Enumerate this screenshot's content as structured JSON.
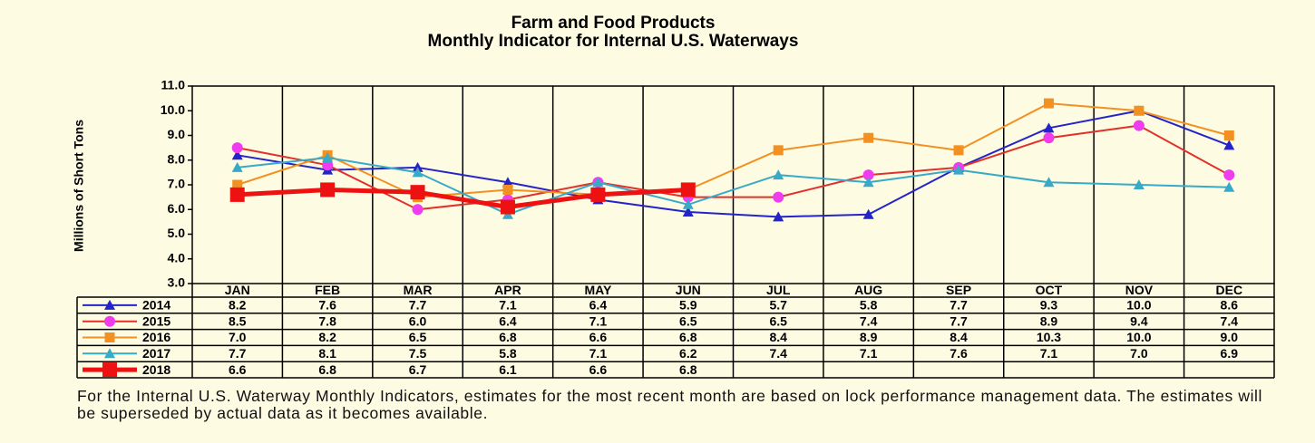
{
  "chart_data": {
    "type": "line",
    "title": "Farm and Food Products",
    "subtitle": "Monthly Indicator for Internal U.S. Waterways",
    "y_label": "Millions of Short Tons",
    "categories": [
      "JAN",
      "FEB",
      "MAR",
      "APR",
      "MAY",
      "JUN",
      "JUL",
      "AUG",
      "SEP",
      "OCT",
      "NOV",
      "DEC"
    ],
    "ylim": [
      3,
      11
    ],
    "yticks": [
      {
        "value": 3,
        "label": "3.0"
      },
      {
        "value": 4,
        "label": "4.0"
      },
      {
        "value": 5,
        "label": "5.0"
      },
      {
        "value": 6,
        "label": "6.0"
      },
      {
        "value": 7,
        "label": "7.0"
      },
      {
        "value": 8,
        "label": "8.0"
      },
      {
        "value": 9,
        "label": "9.0"
      },
      {
        "value": 10,
        "label": "10.0"
      },
      {
        "value": 11,
        "label": "11.0"
      }
    ],
    "grid": false,
    "series": [
      {
        "name": "2014",
        "color": "#2424c8",
        "marker": "triangle",
        "marker_color": "#2424c8",
        "values": [
          8.2,
          7.6,
          7.7,
          7.1,
          6.4,
          5.9,
          5.7,
          5.8,
          7.7,
          9.3,
          10,
          8.6
        ],
        "value_labels": [
          "8.2",
          "7.6",
          "7.7",
          "7.1",
          "6.4",
          "5.9",
          "5.7",
          "5.8",
          "7.7",
          "9.3",
          "10.0",
          "8.6"
        ]
      },
      {
        "name": "2015",
        "color": "#e2302a",
        "marker": "circle",
        "marker_color": "#ee3cee",
        "values": [
          8.5,
          7.8,
          6,
          6.4,
          7.1,
          6.5,
          6.5,
          7.4,
          7.7,
          8.9,
          9.4,
          7.4
        ],
        "value_labels": [
          "8.5",
          "7.8",
          "6.0",
          "6.4",
          "7.1",
          "6.5",
          "6.5",
          "7.4",
          "7.7",
          "8.9",
          "9.4",
          "7.4"
        ]
      },
      {
        "name": "2016",
        "color": "#f39022",
        "marker": "square",
        "marker_color": "#f39022",
        "values": [
          7,
          8.2,
          6.5,
          6.8,
          6.6,
          6.8,
          8.4,
          8.9,
          8.4,
          10.3,
          10,
          9
        ],
        "value_labels": [
          "7.0",
          "8.2",
          "6.5",
          "6.8",
          "6.6",
          "6.8",
          "8.4",
          "8.9",
          "8.4",
          "10.3",
          "10.0",
          "9.0"
        ]
      },
      {
        "name": "2017",
        "color": "#38aac8",
        "marker": "triangle",
        "marker_color": "#38aac8",
        "values": [
          7.7,
          8.1,
          7.5,
          5.8,
          7.1,
          6.2,
          7.4,
          7.1,
          7.6,
          7.1,
          7,
          6.9
        ],
        "value_labels": [
          "7.7",
          "8.1",
          "7.5",
          "5.8",
          "7.1",
          "6.2",
          "7.4",
          "7.1",
          "7.6",
          "7.1",
          "7.0",
          "6.9"
        ]
      },
      {
        "name": "2018",
        "color": "#ee1111",
        "marker": "bigsquare",
        "marker_color": "#ee1111",
        "values": [
          6.6,
          6.8,
          6.7,
          6.1,
          6.6,
          6.8,
          null,
          null,
          null,
          null,
          null,
          null
        ],
        "value_labels": [
          "6.6",
          "6.8",
          "6.7",
          "6.1",
          "6.6",
          "6.8",
          null,
          null,
          null,
          null,
          null,
          null
        ]
      }
    ],
    "note": "For the Internal U.S. Waterway Monthly Indicators, estimates for the most recent month are based on lock performance management data. The estimates will be superseded by actual data as it becomes available."
  }
}
